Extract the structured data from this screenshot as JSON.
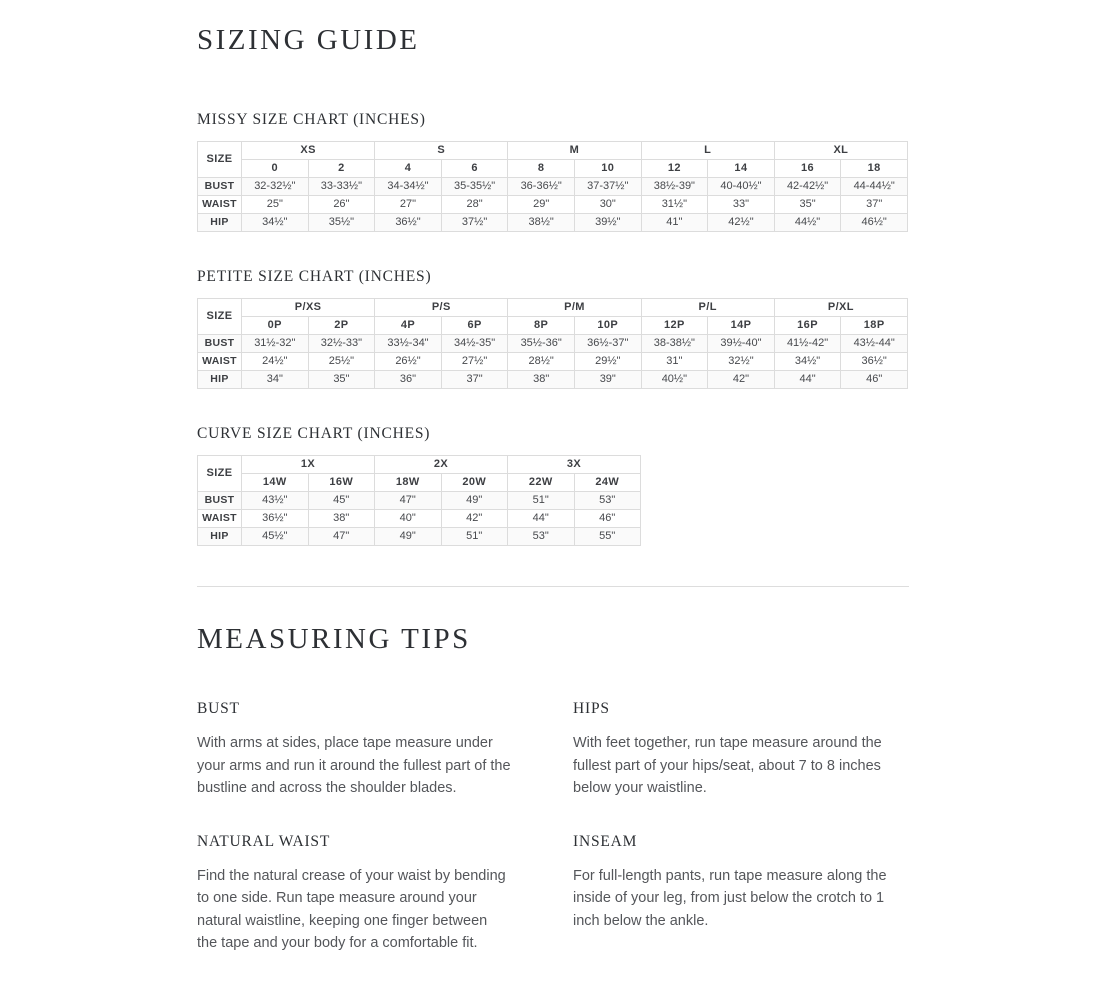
{
  "page_title": "SIZING GUIDE",
  "colors": {
    "heading_text": "#2d3034",
    "table_text": "#3d3f43",
    "body_text": "#54565a",
    "table_border": "#dcdcdc",
    "divider": "#dddddd",
    "background": "#ffffff"
  },
  "sizing_section": {
    "charts": [
      {
        "title": "MISSY SIZE CHART (INCHES)",
        "corner_label": "SIZE",
        "groups": [
          "XS",
          "S",
          "M",
          "L",
          "XL"
        ],
        "sizes": [
          "0",
          "2",
          "4",
          "6",
          "8",
          "10",
          "12",
          "14",
          "16",
          "18"
        ],
        "rows": [
          {
            "label": "BUST",
            "values": [
              "32-32½\"",
              "33-33½\"",
              "34-34½\"",
              "35-35½\"",
              "36-36½\"",
              "37-37½\"",
              "38½-39\"",
              "40-40½\"",
              "42-42½\"",
              "44-44½\""
            ]
          },
          {
            "label": "WAIST",
            "values": [
              "25\"",
              "26\"",
              "27\"",
              "28\"",
              "29\"",
              "30\"",
              "31½\"",
              "33\"",
              "35\"",
              "37\""
            ]
          },
          {
            "label": "HIP",
            "values": [
              "34½\"",
              "35½\"",
              "36½\"",
              "37½\"",
              "38½\"",
              "39½\"",
              "41\"",
              "42½\"",
              "44½\"",
              "46½\""
            ]
          }
        ]
      },
      {
        "title": "PETITE SIZE CHART (INCHES)",
        "corner_label": "SIZE",
        "groups": [
          "P/XS",
          "P/S",
          "P/M",
          "P/L",
          "P/XL"
        ],
        "sizes": [
          "0P",
          "2P",
          "4P",
          "6P",
          "8P",
          "10P",
          "12P",
          "14P",
          "16P",
          "18P"
        ],
        "rows": [
          {
            "label": "BUST",
            "values": [
              "31½-32\"",
              "32½-33\"",
              "33½-34\"",
              "34½-35\"",
              "35½-36\"",
              "36½-37\"",
              "38-38½\"",
              "39½-40\"",
              "41½-42\"",
              "43½-44\""
            ]
          },
          {
            "label": "WAIST",
            "values": [
              "24½\"",
              "25½\"",
              "26½\"",
              "27½\"",
              "28½\"",
              "29½\"",
              "31\"",
              "32½\"",
              "34½\"",
              "36½\""
            ]
          },
          {
            "label": "HIP",
            "values": [
              "34\"",
              "35\"",
              "36\"",
              "37\"",
              "38\"",
              "39\"",
              "40½\"",
              "42\"",
              "44\"",
              "46\""
            ]
          }
        ]
      },
      {
        "title": "CURVE SIZE CHART (INCHES)",
        "corner_label": "SIZE",
        "groups": [
          "1X",
          "2X",
          "3X"
        ],
        "sizes": [
          "14W",
          "16W",
          "18W",
          "20W",
          "22W",
          "24W"
        ],
        "rows": [
          {
            "label": "BUST",
            "values": [
              "43½\"",
              "45\"",
              "47\"",
              "49\"",
              "51\"",
              "53\""
            ]
          },
          {
            "label": "WAIST",
            "values": [
              "36½\"",
              "38\"",
              "40\"",
              "42\"",
              "44\"",
              "46\""
            ]
          },
          {
            "label": "HIP",
            "values": [
              "45½\"",
              "47\"",
              "49\"",
              "51\"",
              "53\"",
              "55\""
            ]
          }
        ]
      }
    ]
  },
  "measuring_section": {
    "title": "MEASURING TIPS",
    "tips": [
      {
        "heading": "BUST",
        "text": "With arms at sides, place tape measure under your arms and run it around the fullest part of the bustline and across the shoulder blades."
      },
      {
        "heading": "HIPS",
        "text": "With feet together, run tape measure around the fullest part of your hips/seat, about 7 to 8 inches below your waistline."
      },
      {
        "heading": "NATURAL WAIST",
        "text": "Find the natural crease of your waist by bending to one side. Run tape measure around your natural waistline, keeping one finger between the tape and your body for a comfortable fit."
      },
      {
        "heading": "INSEAM",
        "text": "For full-length pants, run tape measure along the inside of your leg, from just below the crotch to 1 inch below the ankle."
      }
    ]
  }
}
